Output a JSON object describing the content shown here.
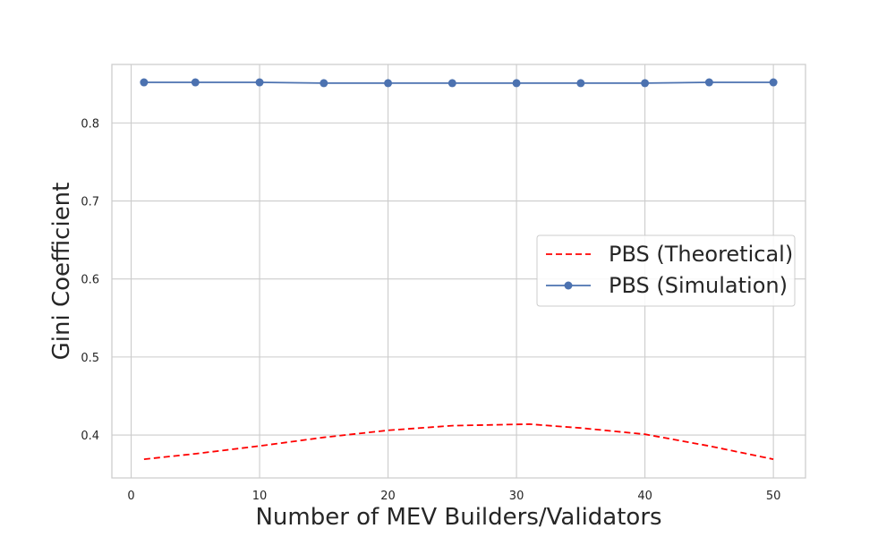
{
  "chart_data": {
    "type": "line",
    "title": "",
    "xlabel": "Number of MEV Builders/Validators",
    "ylabel": "Gini Coefficient",
    "xlim": [
      -1.5,
      52.5
    ],
    "ylim": [
      0.345,
      0.875
    ],
    "x_ticks": [
      0,
      10,
      20,
      30,
      40,
      50
    ],
    "y_ticks": [
      0.4,
      0.5,
      0.6,
      0.7,
      0.8
    ],
    "grid": true,
    "legend_position": "center-right",
    "series": [
      {
        "name": "PBS (Theoretical)",
        "style": "dashed",
        "color": "#ff0000",
        "x": [
          1,
          5,
          10,
          15,
          20,
          25,
          31,
          35,
          40,
          45,
          50
        ],
        "values": [
          0.369,
          0.376,
          0.386,
          0.397,
          0.406,
          0.412,
          0.414,
          0.409,
          0.401,
          0.386,
          0.369
        ]
      },
      {
        "name": "PBS (Simulation)",
        "style": "solid-marker",
        "color": "#4c72b0",
        "x": [
          1,
          5,
          10,
          15,
          20,
          25,
          30,
          35,
          40,
          45,
          50
        ],
        "values": [
          0.852,
          0.852,
          0.852,
          0.851,
          0.851,
          0.851,
          0.851,
          0.851,
          0.851,
          0.852,
          0.852
        ]
      }
    ]
  }
}
